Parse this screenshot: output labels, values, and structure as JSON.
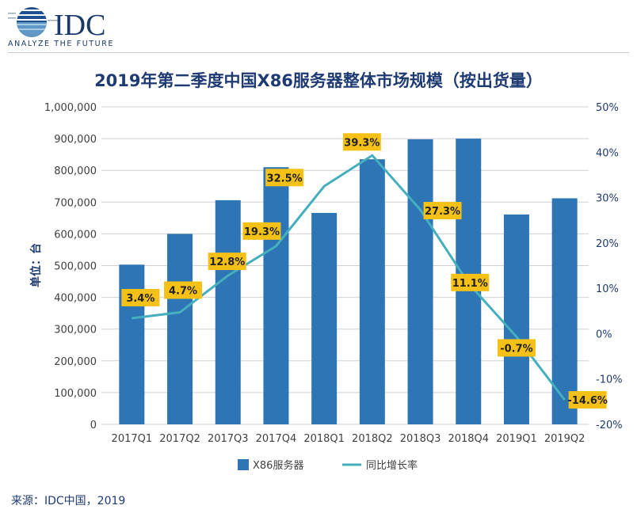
{
  "logo": {
    "brand": "IDC",
    "tagline": "ANALYZE THE FUTURE"
  },
  "title": "2019年第二季度中国X86服务器整体市场规模（按出货量）",
  "source": "来源：IDC中国，2019",
  "colors": {
    "bar": "#2e75b6",
    "line": "#45b0bd",
    "label_bg": "#f5c116",
    "title": "#1f3b73"
  },
  "chart_data": {
    "type": "bar+line",
    "title": "2019年第二季度中国X86服务器整体市场规模（按出货量）",
    "ylabel": "单位：台",
    "categories": [
      "2017Q1",
      "2017Q2",
      "2017Q3",
      "2017Q4",
      "2018Q1",
      "2018Q2",
      "2018Q3",
      "2018Q4",
      "2019Q1",
      "2019Q2"
    ],
    "series": [
      {
        "name": "X86服务器",
        "type": "bar",
        "axis": "left",
        "values": [
          503000,
          600000,
          706000,
          810000,
          666000,
          835000,
          898000,
          900000,
          661000,
          712000
        ]
      },
      {
        "name": "同比增长率",
        "type": "line",
        "axis": "right",
        "values": [
          3.4,
          4.7,
          12.8,
          19.3,
          32.5,
          39.3,
          27.3,
          11.1,
          -0.7,
          -14.6
        ],
        "labels": [
          "3.4%",
          "4.7%",
          "12.8%",
          "19.3%",
          "32.5%",
          "39.3%",
          "27.3%",
          "11.1%",
          "-0.7%",
          "-14.6%"
        ]
      }
    ],
    "left_axis": {
      "ylim": [
        0,
        1000000
      ],
      "ticks": [
        "0",
        "100,000",
        "200,000",
        "300,000",
        "400,000",
        "500,000",
        "600,000",
        "700,000",
        "800,000",
        "900,000",
        "1,000,000"
      ]
    },
    "right_axis": {
      "ylim": [
        -20,
        50
      ],
      "ticks": [
        "-20%",
        "-10%",
        "0%",
        "10%",
        "20%",
        "30%",
        "40%",
        "50%"
      ]
    },
    "grid": true,
    "legend": {
      "placement": "bottom",
      "entries": [
        "X86服务器",
        "同比增长率"
      ]
    }
  }
}
